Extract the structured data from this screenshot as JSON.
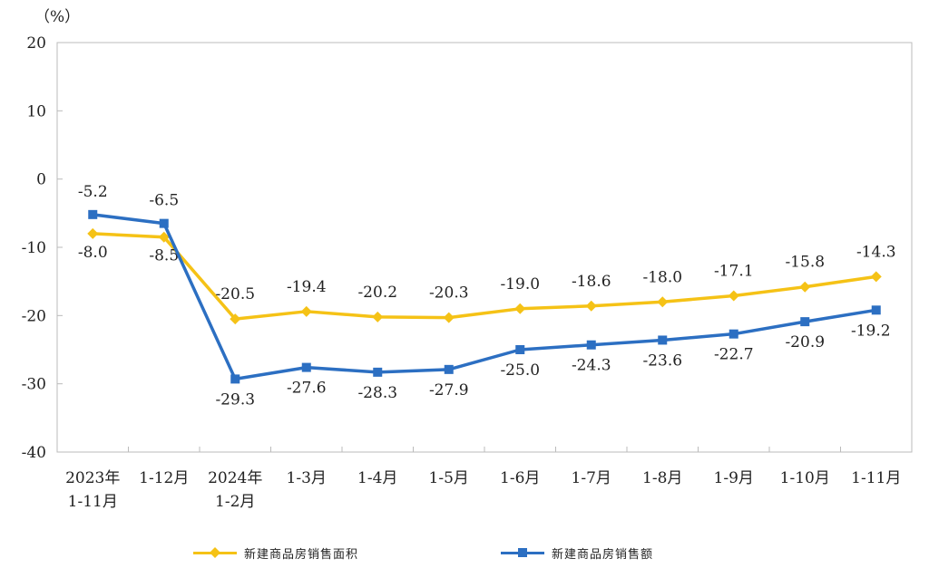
{
  "chart_data": {
    "type": "line",
    "unit_label": "（%）",
    "categories": [
      [
        "2023年",
        "1-11月"
      ],
      [
        "1-12月"
      ],
      [
        "2024年",
        "1-2月"
      ],
      [
        "1-3月"
      ],
      [
        "1-4月"
      ],
      [
        "1-5月"
      ],
      [
        "1-6月"
      ],
      [
        "1-7月"
      ],
      [
        "1-8月"
      ],
      [
        "1-9月"
      ],
      [
        "1-10月"
      ],
      [
        "1-11月"
      ]
    ],
    "ylim": [
      -40,
      20
    ],
    "yticks": [
      20,
      10,
      0,
      -10,
      -20,
      -30,
      -40
    ],
    "ytick_labels": [
      "20",
      "10",
      "0",
      "-10",
      "-20",
      "-30",
      "-40"
    ],
    "grid": false,
    "legend_position": "bottom",
    "series": [
      {
        "name": "新建商品房销售面积",
        "color": "#f5c216",
        "marker": "diamond",
        "values": [
          -8.0,
          -8.5,
          -20.5,
          -19.4,
          -20.2,
          -20.3,
          -19.0,
          -18.6,
          -18.0,
          -17.1,
          -15.8,
          -14.3
        ],
        "labels": [
          "-8.0",
          "-8.5",
          "-20.5",
          "-19.4",
          "-20.2",
          "-20.3",
          "-19.0",
          "-18.6",
          "-18.0",
          "-17.1",
          "-15.8",
          "-14.3"
        ]
      },
      {
        "name": "新建商品房销售额",
        "color": "#2c6fc2",
        "marker": "square",
        "values": [
          -5.2,
          -6.5,
          -29.3,
          -27.6,
          -28.3,
          -27.9,
          -25.0,
          -24.3,
          -23.6,
          -22.7,
          -20.9,
          -19.2
        ],
        "labels": [
          "-5.2",
          "-6.5",
          "-29.3",
          "-27.6",
          "-28.3",
          "-27.9",
          "-25.0",
          "-24.3",
          "-23.6",
          "-22.7",
          "-20.9",
          "-19.2"
        ]
      }
    ]
  }
}
